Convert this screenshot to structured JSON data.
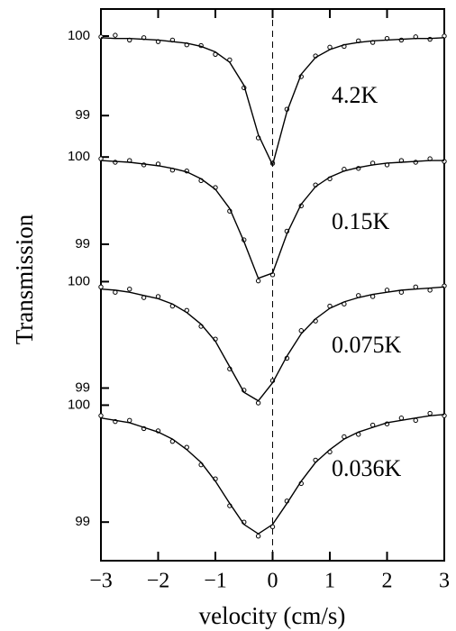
{
  "axes": {
    "xlabel": "velocity (cm/s)",
    "ylabel": "Transmission",
    "xlim": [
      -3,
      3
    ],
    "xticks": [
      {
        "value": -3,
        "label": "−3"
      },
      {
        "value": -2,
        "label": "−2"
      },
      {
        "value": -1,
        "label": "−1"
      },
      0,
      1,
      2,
      3
    ],
    "vline": 0
  },
  "chart_data": [
    {
      "type": "line",
      "label": "4.2K",
      "ylim": [
        98.3,
        100.34
      ],
      "yticks": [
        99,
        100
      ],
      "color": "#000000",
      "x": [
        -3,
        -2.75,
        -2.5,
        -2.25,
        -2,
        -1.75,
        -1.5,
        -1.25,
        -1,
        -0.75,
        -0.5,
        -0.25,
        0,
        0.25,
        0.5,
        0.75,
        1,
        1.25,
        1.5,
        1.75,
        2,
        2.25,
        2.5,
        2.75,
        3
      ],
      "series": [
        {
          "style": "points",
          "values": [
            99.99,
            100.01,
            99.95,
            99.98,
            99.93,
            99.95,
            99.89,
            99.88,
            99.77,
            99.7,
            99.35,
            98.72,
            98.4,
            99.08,
            99.49,
            99.75,
            99.86,
            99.87,
            99.94,
            99.92,
            99.97,
            99.95,
            99.99,
            99.96,
            100
          ]
        },
        {
          "style": "fit",
          "values": [
            99.98,
            99.97,
            99.97,
            99.96,
            99.95,
            99.93,
            99.91,
            99.87,
            99.8,
            99.67,
            99.38,
            98.76,
            98.38,
            99.05,
            99.52,
            99.73,
            99.83,
            99.89,
            99.92,
            99.94,
            99.95,
            99.96,
            99.97,
            99.97,
            99.98
          ]
        }
      ]
    },
    {
      "type": "line",
      "label": "0.15K",
      "ylim": [
        98.39,
        100.25
      ],
      "yticks": [
        99,
        100
      ],
      "color": "#000000",
      "x": [
        -3,
        -2.75,
        -2.5,
        -2.25,
        -2,
        -1.75,
        -1.5,
        -1.25,
        -1,
        -0.75,
        -0.5,
        -0.25,
        0,
        0.25,
        0.5,
        0.75,
        1,
        1.25,
        1.5,
        1.75,
        2,
        2.25,
        2.5,
        2.75,
        3
      ],
      "series": [
        {
          "style": "points",
          "values": [
            99.98,
            99.94,
            99.96,
            99.91,
            99.92,
            99.85,
            99.84,
            99.73,
            99.65,
            99.38,
            99.05,
            98.58,
            98.65,
            99.15,
            99.44,
            99.68,
            99.75,
            99.86,
            99.87,
            99.93,
            99.91,
            99.96,
            99.94,
            99.98,
            99.95
          ]
        },
        {
          "style": "fit",
          "values": [
            99.96,
            99.95,
            99.94,
            99.92,
            99.9,
            99.87,
            99.83,
            99.75,
            99.63,
            99.41,
            99.03,
            98.61,
            98.67,
            99.12,
            99.46,
            99.66,
            99.77,
            99.84,
            99.88,
            99.91,
            99.93,
            99.94,
            99.95,
            99.96,
            99.96
          ]
        }
      ]
    },
    {
      "type": "line",
      "label": "0.075K",
      "ylim": [
        98.75,
        100.19
      ],
      "yticks": [
        99,
        100
      ],
      "color": "#000000",
      "x": [
        -3,
        -2.75,
        -2.5,
        -2.25,
        -2,
        -1.75,
        -1.5,
        -1.25,
        -1,
        -0.75,
        -0.5,
        -0.25,
        0,
        0.25,
        0.5,
        0.75,
        1,
        1.25,
        1.5,
        1.75,
        2,
        2.25,
        2.5,
        2.75,
        3
      ],
      "series": [
        {
          "style": "points",
          "values": [
            99.95,
            99.9,
            99.93,
            99.85,
            99.86,
            99.77,
            99.73,
            99.58,
            99.46,
            99.18,
            98.98,
            98.86,
            99.07,
            99.28,
            99.54,
            99.63,
            99.77,
            99.79,
            99.87,
            99.86,
            99.92,
            99.9,
            99.95,
            99.92,
            99.96
          ]
        },
        {
          "style": "fit",
          "values": [
            99.93,
            99.92,
            99.9,
            99.87,
            99.84,
            99.79,
            99.71,
            99.6,
            99.44,
            99.2,
            98.96,
            98.88,
            99.05,
            99.3,
            99.51,
            99.65,
            99.75,
            99.81,
            99.85,
            99.88,
            99.9,
            99.92,
            99.93,
            99.94,
            99.95
          ]
        }
      ]
    },
    {
      "type": "line",
      "label": "0.036K",
      "ylim": [
        98.67,
        100.15
      ],
      "yticks": [
        99,
        100
      ],
      "color": "#000000",
      "x": [
        -3,
        -2.75,
        -2.5,
        -2.25,
        -2,
        -1.75,
        -1.5,
        -1.25,
        -1,
        -0.75,
        -0.5,
        -0.25,
        0,
        0.25,
        0.5,
        0.75,
        1,
        1.25,
        1.5,
        1.75,
        2,
        2.25,
        2.5,
        2.75,
        3
      ],
      "series": [
        {
          "style": "points",
          "values": [
            99.91,
            99.86,
            99.87,
            99.8,
            99.78,
            99.69,
            99.64,
            99.49,
            99.37,
            99.14,
            99,
            98.88,
            98.96,
            99.18,
            99.33,
            99.53,
            99.6,
            99.73,
            99.75,
            99.83,
            99.84,
            99.89,
            99.87,
            99.93,
            99.91
          ]
        },
        {
          "style": "fit",
          "values": [
            99.89,
            99.87,
            99.85,
            99.81,
            99.77,
            99.71,
            99.62,
            99.51,
            99.35,
            99.16,
            98.98,
            98.9,
            98.98,
            99.16,
            99.35,
            99.51,
            99.62,
            99.71,
            99.77,
            99.81,
            99.85,
            99.87,
            99.89,
            99.91,
            99.92
          ]
        }
      ]
    }
  ]
}
